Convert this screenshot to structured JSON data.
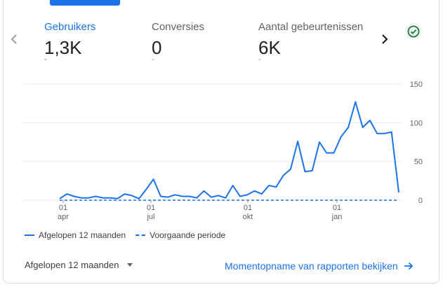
{
  "metrics": [
    {
      "label": "Gebruikers",
      "value": "1,3K",
      "change": "-"
    },
    {
      "label": "Conversies",
      "value": "0",
      "change": "-"
    },
    {
      "label": "Aantal gebeurtenissen",
      "value": "6K",
      "change": "-"
    }
  ],
  "icons": {
    "prev": "chevron-left-icon",
    "next": "chevron-right-icon",
    "status": "check-circle-icon",
    "dropdown": "caret-down-icon",
    "link_arrow": "arrow-right-icon"
  },
  "colors": {
    "accent": "#1a73e8",
    "status_check": "#188038",
    "grid": "#e8eaed"
  },
  "legend": {
    "current": "Afgelopen 12 maanden",
    "previous": "Voorgaande periode"
  },
  "footer": {
    "date_range": "Afgelopen 12 maanden",
    "link": "Momentopname van rapporten bekijken"
  },
  "chart_data": {
    "type": "line",
    "x_tick_labels": [
      {
        "day": "01",
        "month": "apr"
      },
      {
        "day": "01",
        "month": "jul"
      },
      {
        "day": "01",
        "month": "okt"
      },
      {
        "day": "01",
        "month": "jan"
      }
    ],
    "y_ticks": [
      0,
      50,
      100,
      150
    ],
    "ylim": [
      0,
      150
    ],
    "ylabel_position": "right",
    "grid": true,
    "legend_placement": "bottom-left",
    "series": [
      {
        "name": "Afgelopen 12 maanden",
        "style": "solid",
        "values": [
          2,
          8,
          5,
          3,
          3,
          5,
          3,
          3,
          2,
          8,
          6,
          2,
          14,
          27,
          5,
          4,
          7,
          5,
          5,
          3,
          12,
          4,
          6,
          3,
          19,
          5,
          7,
          12,
          8,
          19,
          17,
          32,
          40,
          76,
          37,
          38,
          75,
          61,
          61,
          82,
          94,
          127,
          94,
          103,
          86,
          86,
          88,
          10
        ]
      },
      {
        "name": "Voorgaande periode",
        "style": "dashed",
        "values": [
          0,
          0,
          0,
          0,
          0,
          0,
          0,
          0,
          0,
          0,
          0,
          0,
          0,
          0,
          0,
          0,
          0,
          0,
          0,
          0,
          0,
          0,
          0,
          0,
          0,
          0,
          0,
          0,
          0,
          0,
          0,
          0,
          0,
          0,
          0,
          0,
          0,
          0,
          0,
          0,
          0,
          0,
          0,
          0,
          0,
          0,
          0,
          0
        ]
      }
    ]
  }
}
